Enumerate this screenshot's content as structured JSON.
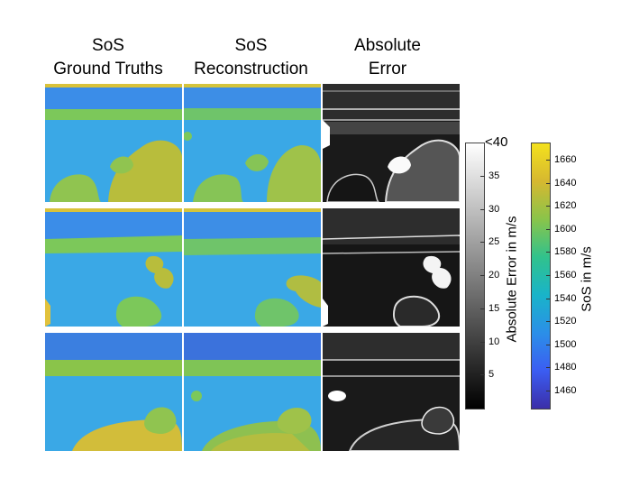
{
  "columns": [
    {
      "line1": "SoS",
      "line2": "Ground Truths"
    },
    {
      "line1": "SoS",
      "line2": "Reconstruction"
    },
    {
      "line1": "Absolute",
      "line2": "Error"
    }
  ],
  "error_colorbar": {
    "label": "Absolute Error in m/s",
    "top_label": "<40",
    "ticks": [
      "35",
      "30",
      "25",
      "20",
      "15",
      "10",
      "5"
    ],
    "min": 0,
    "max": 40,
    "gradient_top": "#ffffff",
    "gradient_bottom": "#000000"
  },
  "sos_colorbar": {
    "label": "SoS in m/s",
    "ticks": [
      "1660",
      "1640",
      "1620",
      "1600",
      "1580",
      "1560",
      "1540",
      "1520",
      "1500",
      "1480",
      "1460"
    ],
    "min": 1445,
    "max": 1675,
    "colors": [
      "#3b2ea8",
      "#3b5df2",
      "#2b8fe8",
      "#19b4c9",
      "#31c28c",
      "#8ac44a",
      "#d6b830",
      "#f4e11d"
    ]
  },
  "palette": {
    "water_blue": "#3aa8e6",
    "layer_green": "#7cc85a",
    "tissue_green": "#90c450",
    "yellow_top": "#d9c23a",
    "dark_blue_band": "#3b7fe0",
    "yellowish": "#d2bd3a"
  }
}
